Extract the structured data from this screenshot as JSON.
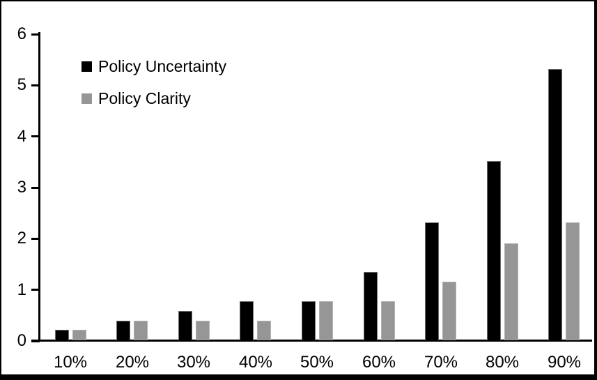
{
  "chart_data": {
    "type": "bar",
    "title": "",
    "xlabel": "",
    "ylabel": "",
    "categories": [
      "10%",
      "20%",
      "30%",
      "40%",
      "50%",
      "60%",
      "70%",
      "80%",
      "90%"
    ],
    "series": [
      {
        "name": "Policy Uncertainty",
        "color": "#000000",
        "values": [
          0.2,
          0.38,
          0.57,
          0.76,
          0.77,
          1.33,
          2.3,
          3.5,
          5.3
        ]
      },
      {
        "name": "Policy Clarity",
        "color": "#969696",
        "values": [
          0.2,
          0.38,
          0.38,
          0.38,
          0.77,
          0.77,
          1.15,
          1.9,
          2.3
        ]
      }
    ],
    "ylim": [
      0,
      6
    ],
    "yticks": [
      0,
      1,
      2,
      3,
      4,
      5,
      6
    ],
    "grid": false,
    "legend_position": "top-left-inside",
    "background_color": "#ffffff",
    "frame_color": "#000000",
    "axis_color": "#000000"
  }
}
